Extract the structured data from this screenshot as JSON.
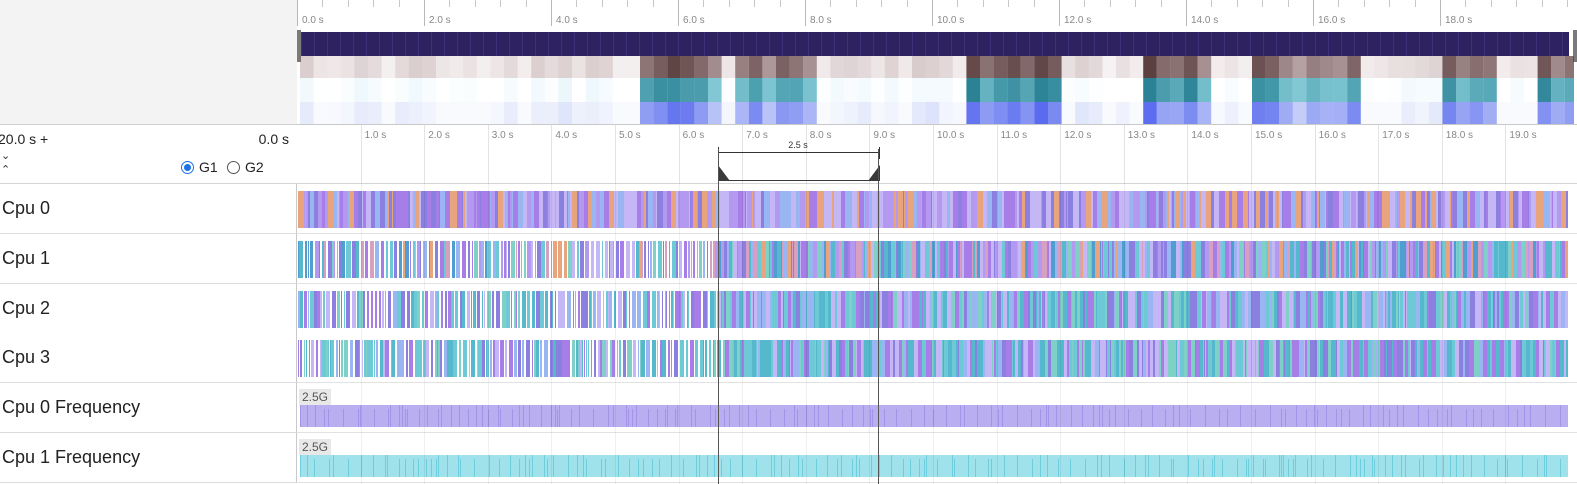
{
  "overview": {
    "ticks": [
      "0.0 s",
      "2.0 s",
      "4.0 s",
      "6.0 s",
      "8.0 s",
      "10.0 s",
      "12.0 s",
      "14.0 s",
      "16.0 s",
      "18.0 s"
    ]
  },
  "controls": {
    "range_left": "20.0 s +",
    "range_right": "0.0 s",
    "expand_down": "⌄",
    "expand_up": "⌃",
    "groups": [
      {
        "label": "G1",
        "selected": true
      },
      {
        "label": "G2",
        "selected": false
      }
    ]
  },
  "ruler": {
    "ticks": [
      "1.0 s",
      "2.0 s",
      "3.0 s",
      "4.0 s",
      "5.0 s",
      "6.0 s",
      "7.0 s",
      "8.0 s",
      "9.0 s",
      "10.0 s",
      "11.0 s",
      "12.0 s",
      "13.0 s",
      "14.0 s",
      "15.0 s",
      "16.0 s",
      "17.0 s",
      "18.0 s",
      "19.0 s"
    ]
  },
  "selection": {
    "label": "2.5 s",
    "start_s": 6.6,
    "end_s": 9.1
  },
  "rows": [
    {
      "label": "Cpu 0",
      "kind": "cpu"
    },
    {
      "label": "Cpu 1",
      "kind": "cpu"
    },
    {
      "label": "Cpu 2",
      "kind": "cpu"
    },
    {
      "label": "Cpu 3",
      "kind": "cpu"
    },
    {
      "label": "Cpu 0 Frequency",
      "kind": "freq",
      "badge": "2.5G",
      "color": "#b9aff0",
      "line": "#a394e8"
    },
    {
      "label": "Cpu 1 Frequency",
      "kind": "freq",
      "badge": "2.5G",
      "color": "#9fe2ec",
      "line": "#6fcede"
    }
  ],
  "palette": {
    "cpu": [
      "#a77de8",
      "#8b7fe0",
      "#b39af0",
      "#9ab6f2",
      "#6ec9d6",
      "#56b8cc",
      "#e7a47d",
      "#d8a0c0",
      "#7fd0c6",
      "#c5b7f5",
      "#4f9ecf"
    ],
    "overview_bar": "#2e2260"
  }
}
